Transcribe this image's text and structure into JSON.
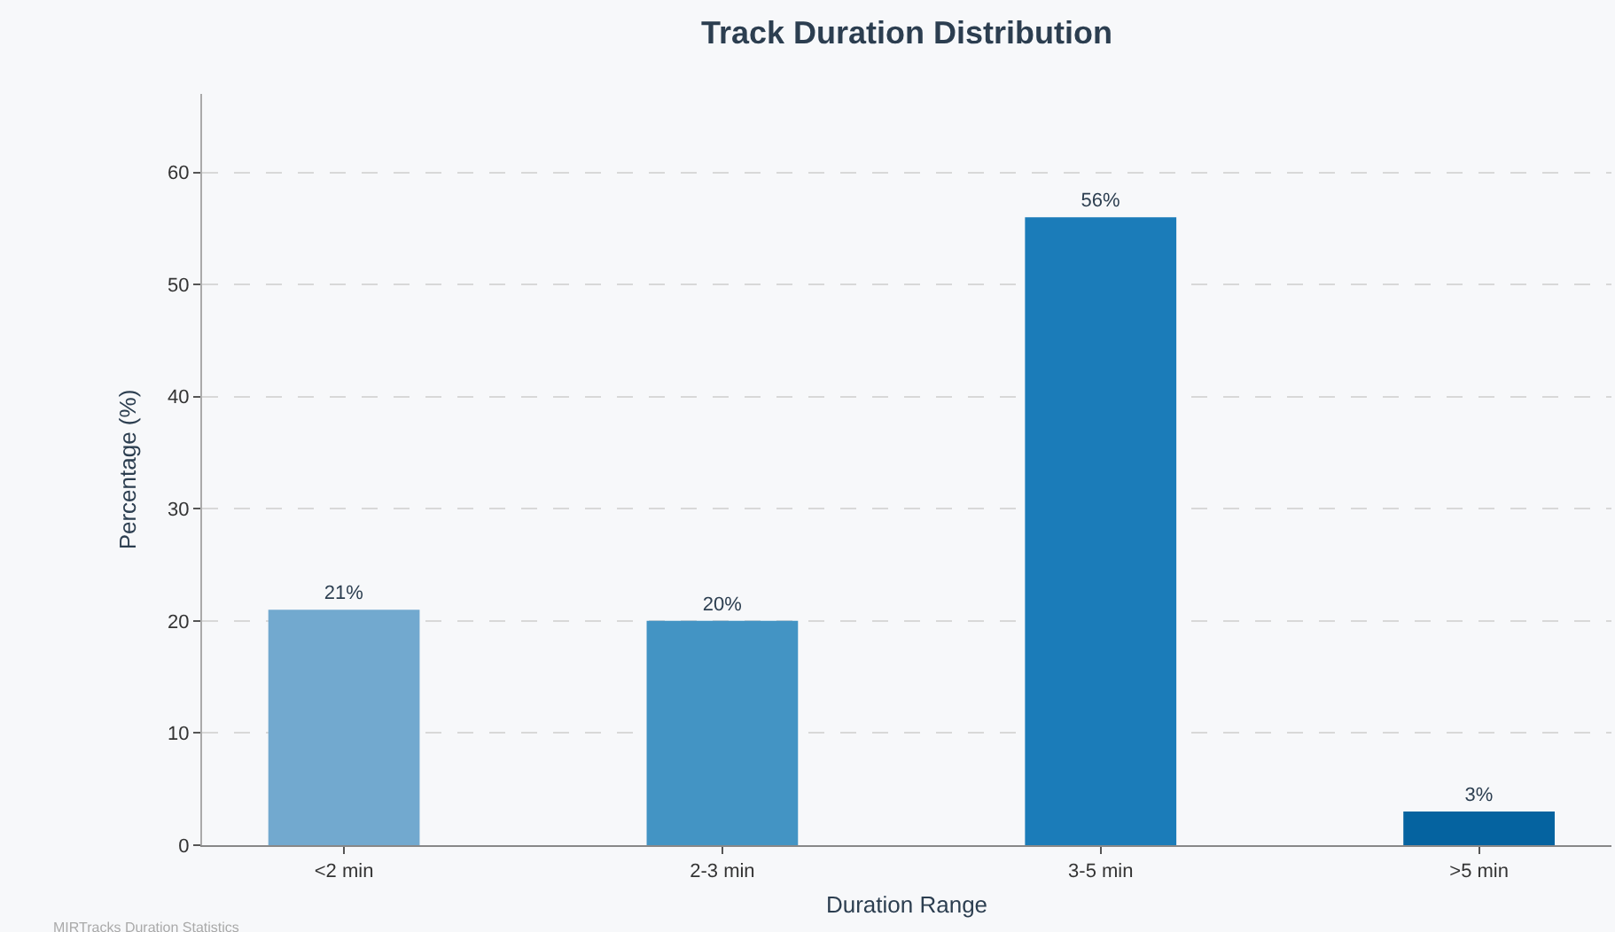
{
  "chart_data": {
    "type": "bar",
    "title": "Track Duration Distribution",
    "xlabel": "Duration Range",
    "ylabel": "Percentage (%)",
    "categories": [
      "<2 min",
      "2-3 min",
      "3-5 min",
      ">5 min"
    ],
    "values": [
      21,
      20,
      56,
      3
    ],
    "colors": [
      "#72a9cf",
      "#4394c4",
      "#1b7cb9",
      "#0563a0"
    ],
    "value_labels": [
      "21%",
      "20%",
      "56%",
      "3%"
    ],
    "ylim": [
      0,
      67
    ],
    "yticks": [
      0,
      10,
      20,
      30,
      40,
      50,
      60
    ],
    "grid": "y",
    "legend": false,
    "annotations": [
      "MIRTracks Duration Statistics"
    ]
  }
}
